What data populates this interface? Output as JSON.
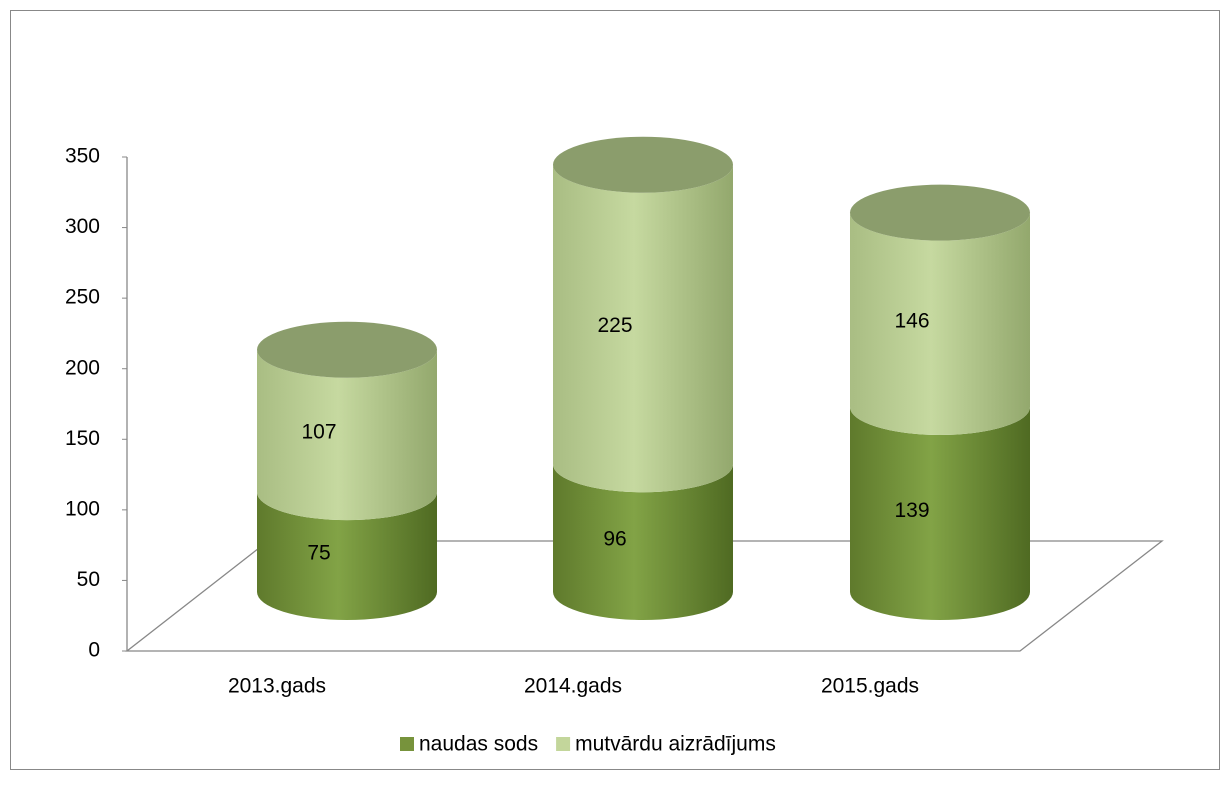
{
  "chart_data": {
    "type": "cylinder_stacked",
    "categories": [
      "2013.gads",
      "2014.gads",
      "2015.gads"
    ],
    "series": [
      {
        "name": "naudas sods",
        "color": "#77933c",
        "values": [
          75,
          96,
          139
        ]
      },
      {
        "name": "mutvārdu aizrādījums",
        "color": "#c3d69b",
        "values": [
          107,
          225,
          146
        ]
      }
    ],
    "ylim": [
      0,
      350
    ],
    "yticks": [
      0,
      50,
      100,
      150,
      200,
      250,
      300,
      350
    ],
    "legend": "bottom"
  }
}
